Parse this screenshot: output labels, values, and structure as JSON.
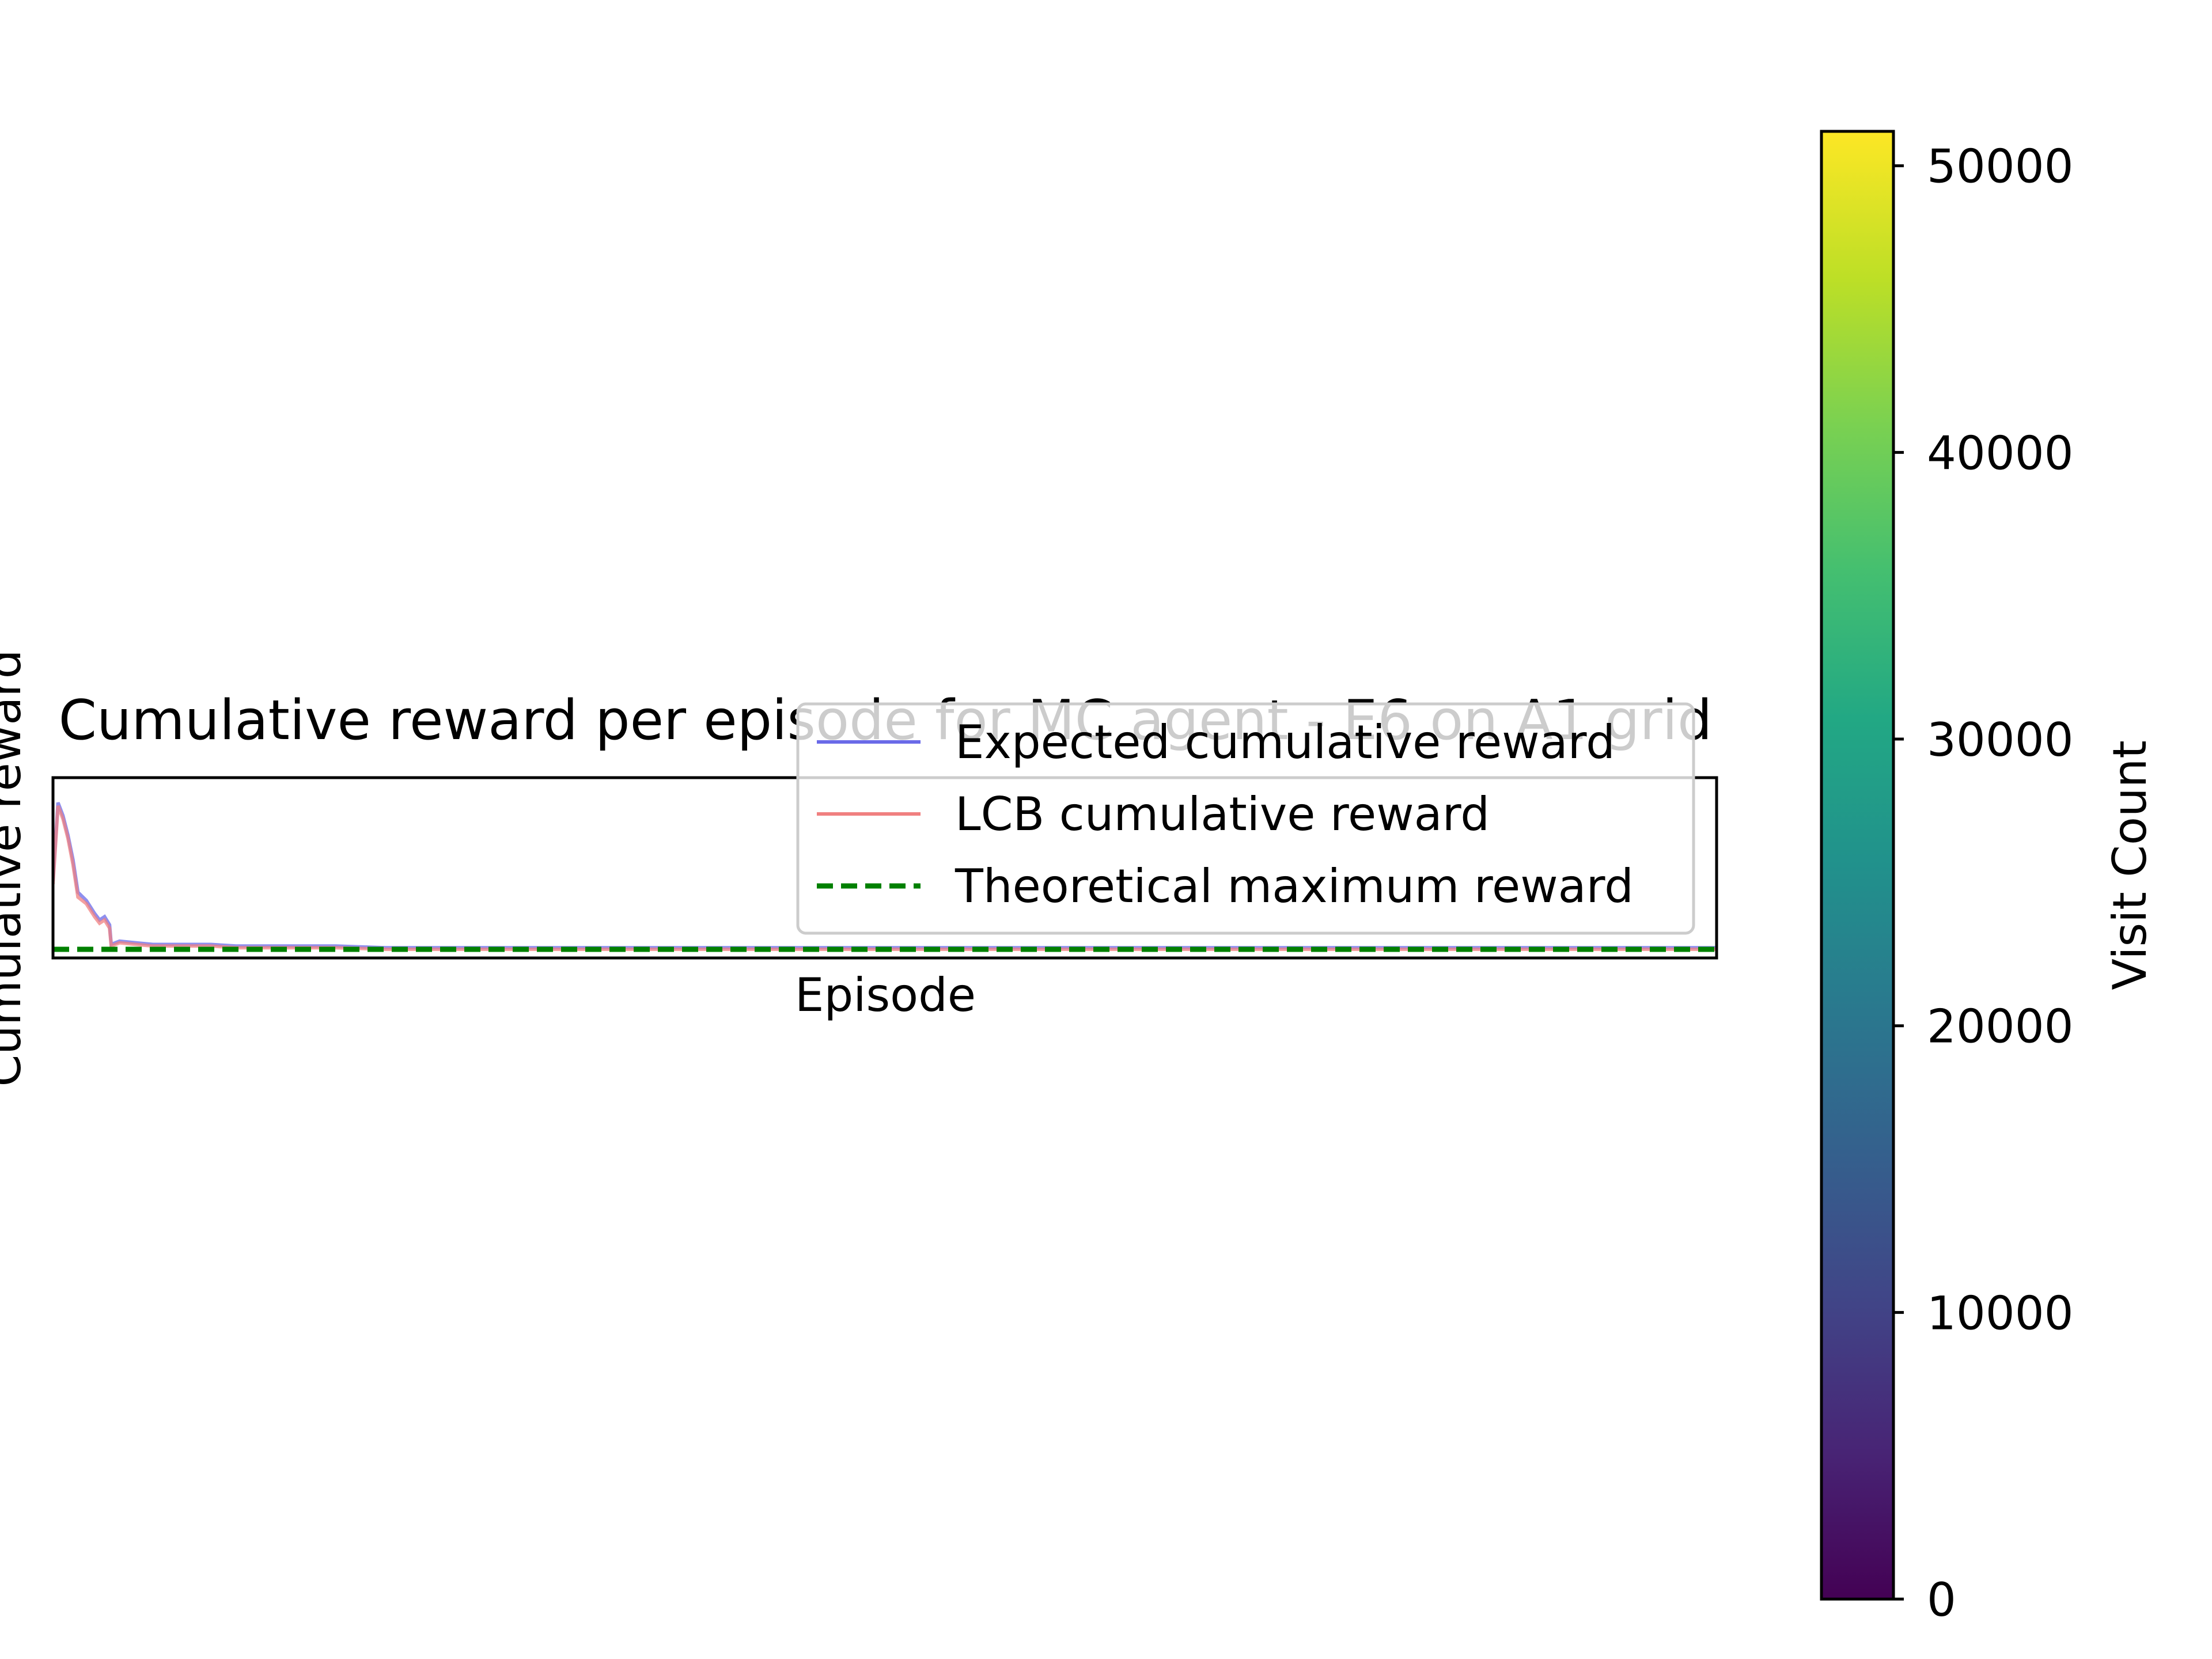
{
  "chart_data": [
    {
      "type": "line",
      "title": "Cumulative reward per episode for MC agent - E6 on A1 grid",
      "xlabel": "Episode",
      "ylabel": "Cumulative reward",
      "grid": false,
      "axis_ticks_visible": false,
      "legend_location": "upper right",
      "legend": [
        {
          "label": "Expected cumulative reward",
          "color": "#6a6ae8",
          "style": "solid"
        },
        {
          "label": "LCB cumulative reward",
          "color": "#f08080",
          "style": "solid"
        },
        {
          "label": "Theoretical maximum reward",
          "color": "#008000",
          "style": "dashed"
        }
      ],
      "series": [
        {
          "name": "Expected cumulative reward",
          "color": "#6a6ae8",
          "note_values": "relative level in plot, 0 = theoretical maximum, 1 = top of axes (no tick labels shown)",
          "x": [
            0,
            3,
            6,
            9,
            12,
            15,
            20,
            25,
            28,
            31,
            34,
            35,
            40,
            50,
            60,
            70,
            80,
            95,
            110,
            140,
            170,
            200,
            250,
            300,
            400,
            500,
            700,
            850,
            1000
          ],
          "values": [
            0.42,
            0.9,
            0.82,
            0.7,
            0.55,
            0.35,
            0.3,
            0.22,
            0.18,
            0.2,
            0.15,
            0.03,
            0.05,
            0.04,
            0.03,
            0.03,
            0.03,
            0.03,
            0.02,
            0.02,
            0.02,
            0.01,
            0.01,
            0.01,
            0.01,
            0.01,
            0.01,
            0.01,
            0.01
          ]
        },
        {
          "name": "LCB cumulative reward",
          "color": "#f08080",
          "x": [
            0,
            3,
            6,
            9,
            12,
            15,
            20,
            25,
            28,
            31,
            34,
            35,
            40,
            50,
            60,
            70,
            80,
            95,
            110,
            140,
            170,
            200,
            250,
            300,
            400,
            500,
            700,
            850,
            1000
          ],
          "values": [
            0.4,
            0.88,
            0.8,
            0.68,
            0.52,
            0.32,
            0.28,
            0.2,
            0.16,
            0.18,
            0.13,
            0.02,
            0.04,
            0.03,
            0.02,
            0.02,
            0.02,
            0.02,
            0.01,
            0.01,
            0.01,
            0.0,
            0.0,
            0.0,
            0.0,
            0.0,
            0.0,
            0.0,
            0.0
          ]
        },
        {
          "name": "Theoretical maximum reward",
          "color": "#008000",
          "x": [
            0,
            1000
          ],
          "values": [
            0,
            0
          ]
        }
      ]
    },
    {
      "type": "heatmap",
      "colorbar_label": "Visit Count",
      "colormap": "viridis",
      "range": [
        0,
        51200
      ],
      "ticks": [
        "0",
        "10000",
        "20000",
        "30000",
        "40000",
        "50000"
      ],
      "tick_values": [
        0,
        10000,
        20000,
        30000,
        40000,
        50000
      ]
    }
  ]
}
